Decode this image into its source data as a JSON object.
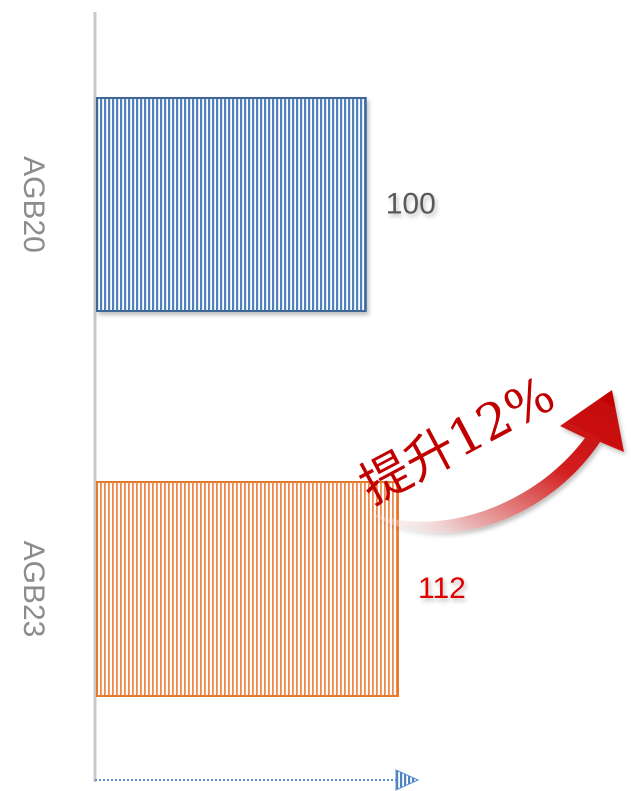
{
  "chart_data": {
    "type": "bar",
    "orientation": "horizontal",
    "categories": [
      "AGB20",
      "AGB23"
    ],
    "values": [
      100,
      112
    ],
    "data_labels": [
      "100",
      "112"
    ],
    "xlim": [
      0,
      120
    ],
    "grid": false,
    "legend": "none",
    "colors": {
      "AGB20_fill": "#4f81bd",
      "AGB20_edge": "#3f6797",
      "AGB23_fill": "#f4a36c",
      "AGB23_edge": "#e87a2e",
      "label_default": "#595959",
      "label_highlight": "#e00000",
      "annotation": "#c00000",
      "axis": "#c8c8c8",
      "x_arrow": "#5b8fd6"
    },
    "annotation": {
      "text": "提升12%",
      "style": "curved-red-arrow"
    }
  }
}
